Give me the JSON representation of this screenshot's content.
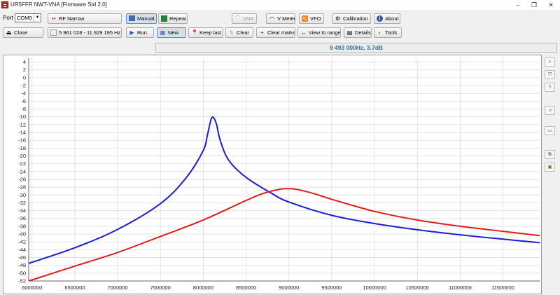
{
  "window": {
    "title": "UR5FFR NWT-VNA [Firmware Std 2.0]",
    "controls": [
      "–",
      "❐",
      "✕"
    ]
  },
  "port": {
    "label": "Port",
    "value": "COM9"
  },
  "toolbar_row1": {
    "mode": "RF Narrow",
    "manual": "Manual",
    "repeat": "Repeat",
    "vna": "VNA",
    "vmeter": "V Meter",
    "vfo": "VFO",
    "calibration": "Calibration",
    "about": "About"
  },
  "toolbar_row2": {
    "close": "Close",
    "range": "5 961 028 - 11 929 195 Hz",
    "run": "Run",
    "new": "New",
    "keep_last": "Keep last",
    "clear": "Clear",
    "clear_marks": "Clear marks",
    "view_to_range": "View to range",
    "details": "Details",
    "tools": "Tools"
  },
  "status_readout": "9 493 000Hz, 3.7dB",
  "colors": {
    "series_blue": "#1c1cd6",
    "series_red": "#e01c1c",
    "status_text": "#2a6fb5",
    "grid": "#e2e2e2"
  },
  "side_toolbar_icons": [
    "zoom-icon",
    "fit-icon",
    "export-icon",
    "chart-icon",
    "screenshot-icon",
    "copy-icon",
    "save-icon"
  ],
  "chart_data": {
    "type": "line",
    "title": "",
    "xlabel": "",
    "ylabel": "",
    "xlim": [
      5961028,
      11929195
    ],
    "ylim": [
      -52,
      5
    ],
    "x_ticks": [
      6000000,
      6500000,
      7000000,
      7500000,
      8000000,
      8500000,
      9000000,
      9500000,
      10000000,
      10500000,
      11000000,
      11500000
    ],
    "y_ticks": [
      4,
      2,
      0,
      -2,
      -4,
      -6,
      -8,
      -10,
      -12,
      -14,
      -16,
      -18,
      -20,
      -22,
      -24,
      -26,
      -28,
      -30,
      -32,
      -34,
      -36,
      -38,
      -40,
      -42,
      -44,
      -46,
      -48,
      -50,
      -52
    ],
    "grid": true,
    "series": [
      {
        "color": "#1c1cd6",
        "x": [
          5961028,
          6500000,
          7000000,
          7500000,
          7800000,
          8000000,
          8050000,
          8100000,
          8150000,
          8200000,
          8300000,
          8500000,
          8800000,
          9000000,
          9500000,
          10000000,
          10500000,
          11000000,
          11500000,
          11929195
        ],
        "y": [
          -47.5,
          -43.5,
          -38.8,
          -32.2,
          -25.6,
          -18.6,
          -14.5,
          -10.2,
          -11.6,
          -16.2,
          -21.2,
          -25.5,
          -29.6,
          -31.8,
          -35.2,
          -37.3,
          -38.9,
          -40.2,
          -41.3,
          -42.2
        ]
      },
      {
        "color": "#e01c1c",
        "x": [
          5961028,
          6500000,
          7000000,
          7500000,
          8000000,
          8500000,
          8700000,
          8900000,
          9000000,
          9100000,
          9300000,
          9500000,
          10000000,
          10500000,
          11000000,
          11500000,
          11929195
        ],
        "y": [
          -52,
          -48.2,
          -44.7,
          -40.6,
          -36.4,
          -31.4,
          -29.6,
          -28.5,
          -28.4,
          -28.6,
          -29.7,
          -31.1,
          -34.2,
          -36.4,
          -38,
          -39.3,
          -40.4
        ]
      }
    ]
  }
}
